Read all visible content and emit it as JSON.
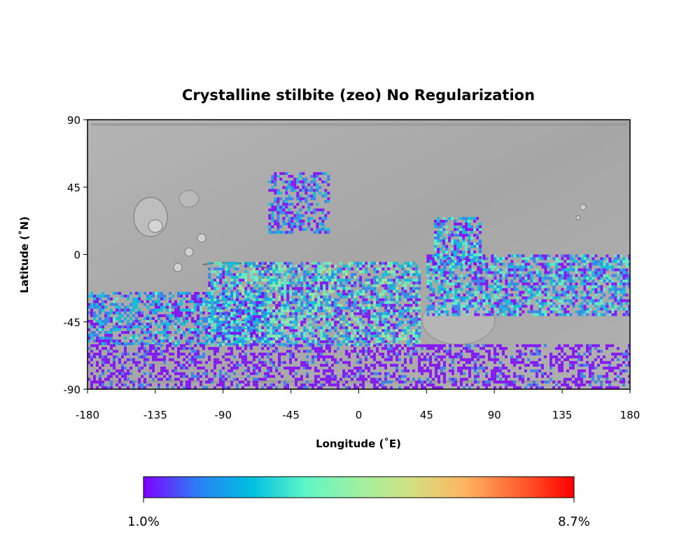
{
  "title": "Crystalline stilbite (zeo) No Regularization",
  "map": {
    "type": "global equirectangular map with abundance overlay",
    "basemap": "grayscale shaded relief",
    "xlabel": "Longitude (˚E)",
    "ylabel": "Latitude (˚N)",
    "xlim": [
      -180,
      180
    ],
    "ylim": [
      -90,
      90
    ],
    "x_ticks": [
      "-180",
      "-135",
      "-90",
      "-45",
      "0",
      "45",
      "90",
      "135",
      "180"
    ],
    "y_ticks": [
      "90",
      "45",
      "0",
      "-45",
      "-90"
    ],
    "overlay_regions": [
      {
        "lon": [
          -180,
          -60
        ],
        "lat": [
          -60,
          -25
        ],
        "level": 0.25
      },
      {
        "lon": [
          -100,
          40
        ],
        "lat": [
          -60,
          -5
        ],
        "level": 0.35
      },
      {
        "lon": [
          45,
          180
        ],
        "lat": [
          -40,
          0
        ],
        "level": 0.3
      },
      {
        "lon": [
          50,
          80
        ],
        "lat": [
          -5,
          25
        ],
        "level": 0.3
      },
      {
        "lon": [
          -60,
          -20
        ],
        "lat": [
          15,
          55
        ],
        "level": 0.2
      },
      {
        "lon": [
          -180,
          180
        ],
        "lat": [
          -90,
          -60
        ],
        "level": 0.1
      }
    ]
  },
  "colorbar": {
    "colormap": "rainbow",
    "colors": [
      "#7f00ff",
      "#2a7ff6",
      "#00c0e0",
      "#5ef5c8",
      "#a0f0a0",
      "#d4e080",
      "#ffb360",
      "#ff6030",
      "#ff0000"
    ],
    "min_label": "1.0%",
    "max_label": "8.7%"
  },
  "colors": {
    "basemap_gray": "#a8a8a8",
    "frame": "#000000"
  }
}
